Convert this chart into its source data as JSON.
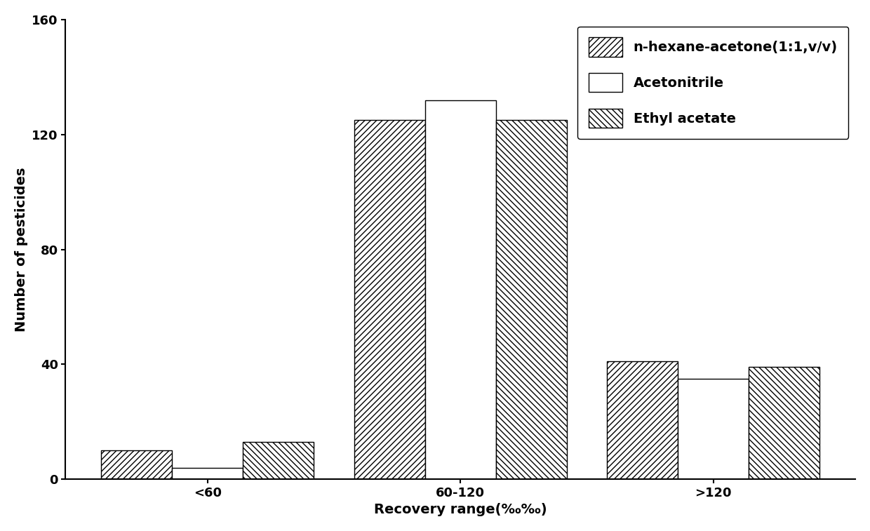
{
  "categories": [
    "<60",
    "60-120",
    ">120"
  ],
  "series": {
    "n-hexane-acetone(1:1,v/v)": [
      10,
      125,
      41
    ],
    "Acetonitrile": [
      4,
      132,
      35
    ],
    "Ethyl acetate": [
      13,
      125,
      39
    ]
  },
  "legend_labels": [
    "n-hexane-acetone(1:1,v/v)",
    "Acetonitrile",
    "Ethyl acetate"
  ],
  "xlabel": "Recovery range(‰‰)",
  "ylabel": "Number of pesticides",
  "ylim": [
    0,
    160
  ],
  "yticks": [
    0,
    40,
    80,
    120,
    160
  ],
  "bar_width": 0.28,
  "background_color": "#ffffff",
  "label_fontsize": 14,
  "tick_fontsize": 13
}
